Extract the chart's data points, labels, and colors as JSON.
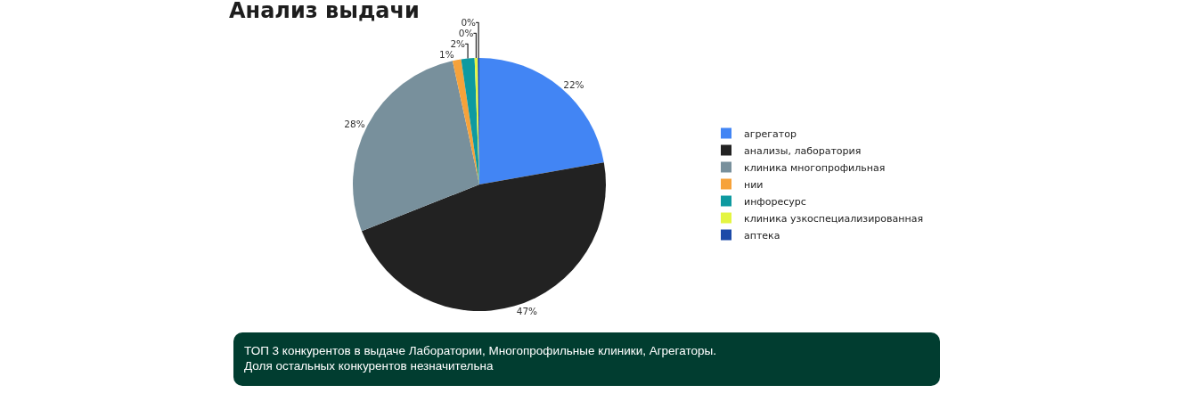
{
  "chart_data": {
    "type": "pie",
    "title": "Анализ выдачи",
    "categories": [
      "агрегатор",
      "анализы, лаборатория",
      "клиника многопрофильная",
      "нии",
      "инфоресурс",
      "клиника узкоспециализированная",
      "аптека"
    ],
    "values": [
      22.2,
      46.8,
      27.6,
      1.1,
      1.7,
      0.4,
      0.2
    ],
    "colors": [
      "#4285f4",
      "#222222",
      "#78909c",
      "#f6a23a",
      "#0e9aa0",
      "#e4f542",
      "#1c4aa8"
    ],
    "value_labels": [
      "22%",
      "47%",
      "28%",
      "1%",
      "2%",
      "0%",
      "0%"
    ],
    "legend": "right",
    "annotations": [
      "ТОП 3 конкурентов в выдаче Лаборатории, Многопрофильные клиники, Агрегаторы.\nДоля остальных конкурентов незначительна"
    ]
  }
}
